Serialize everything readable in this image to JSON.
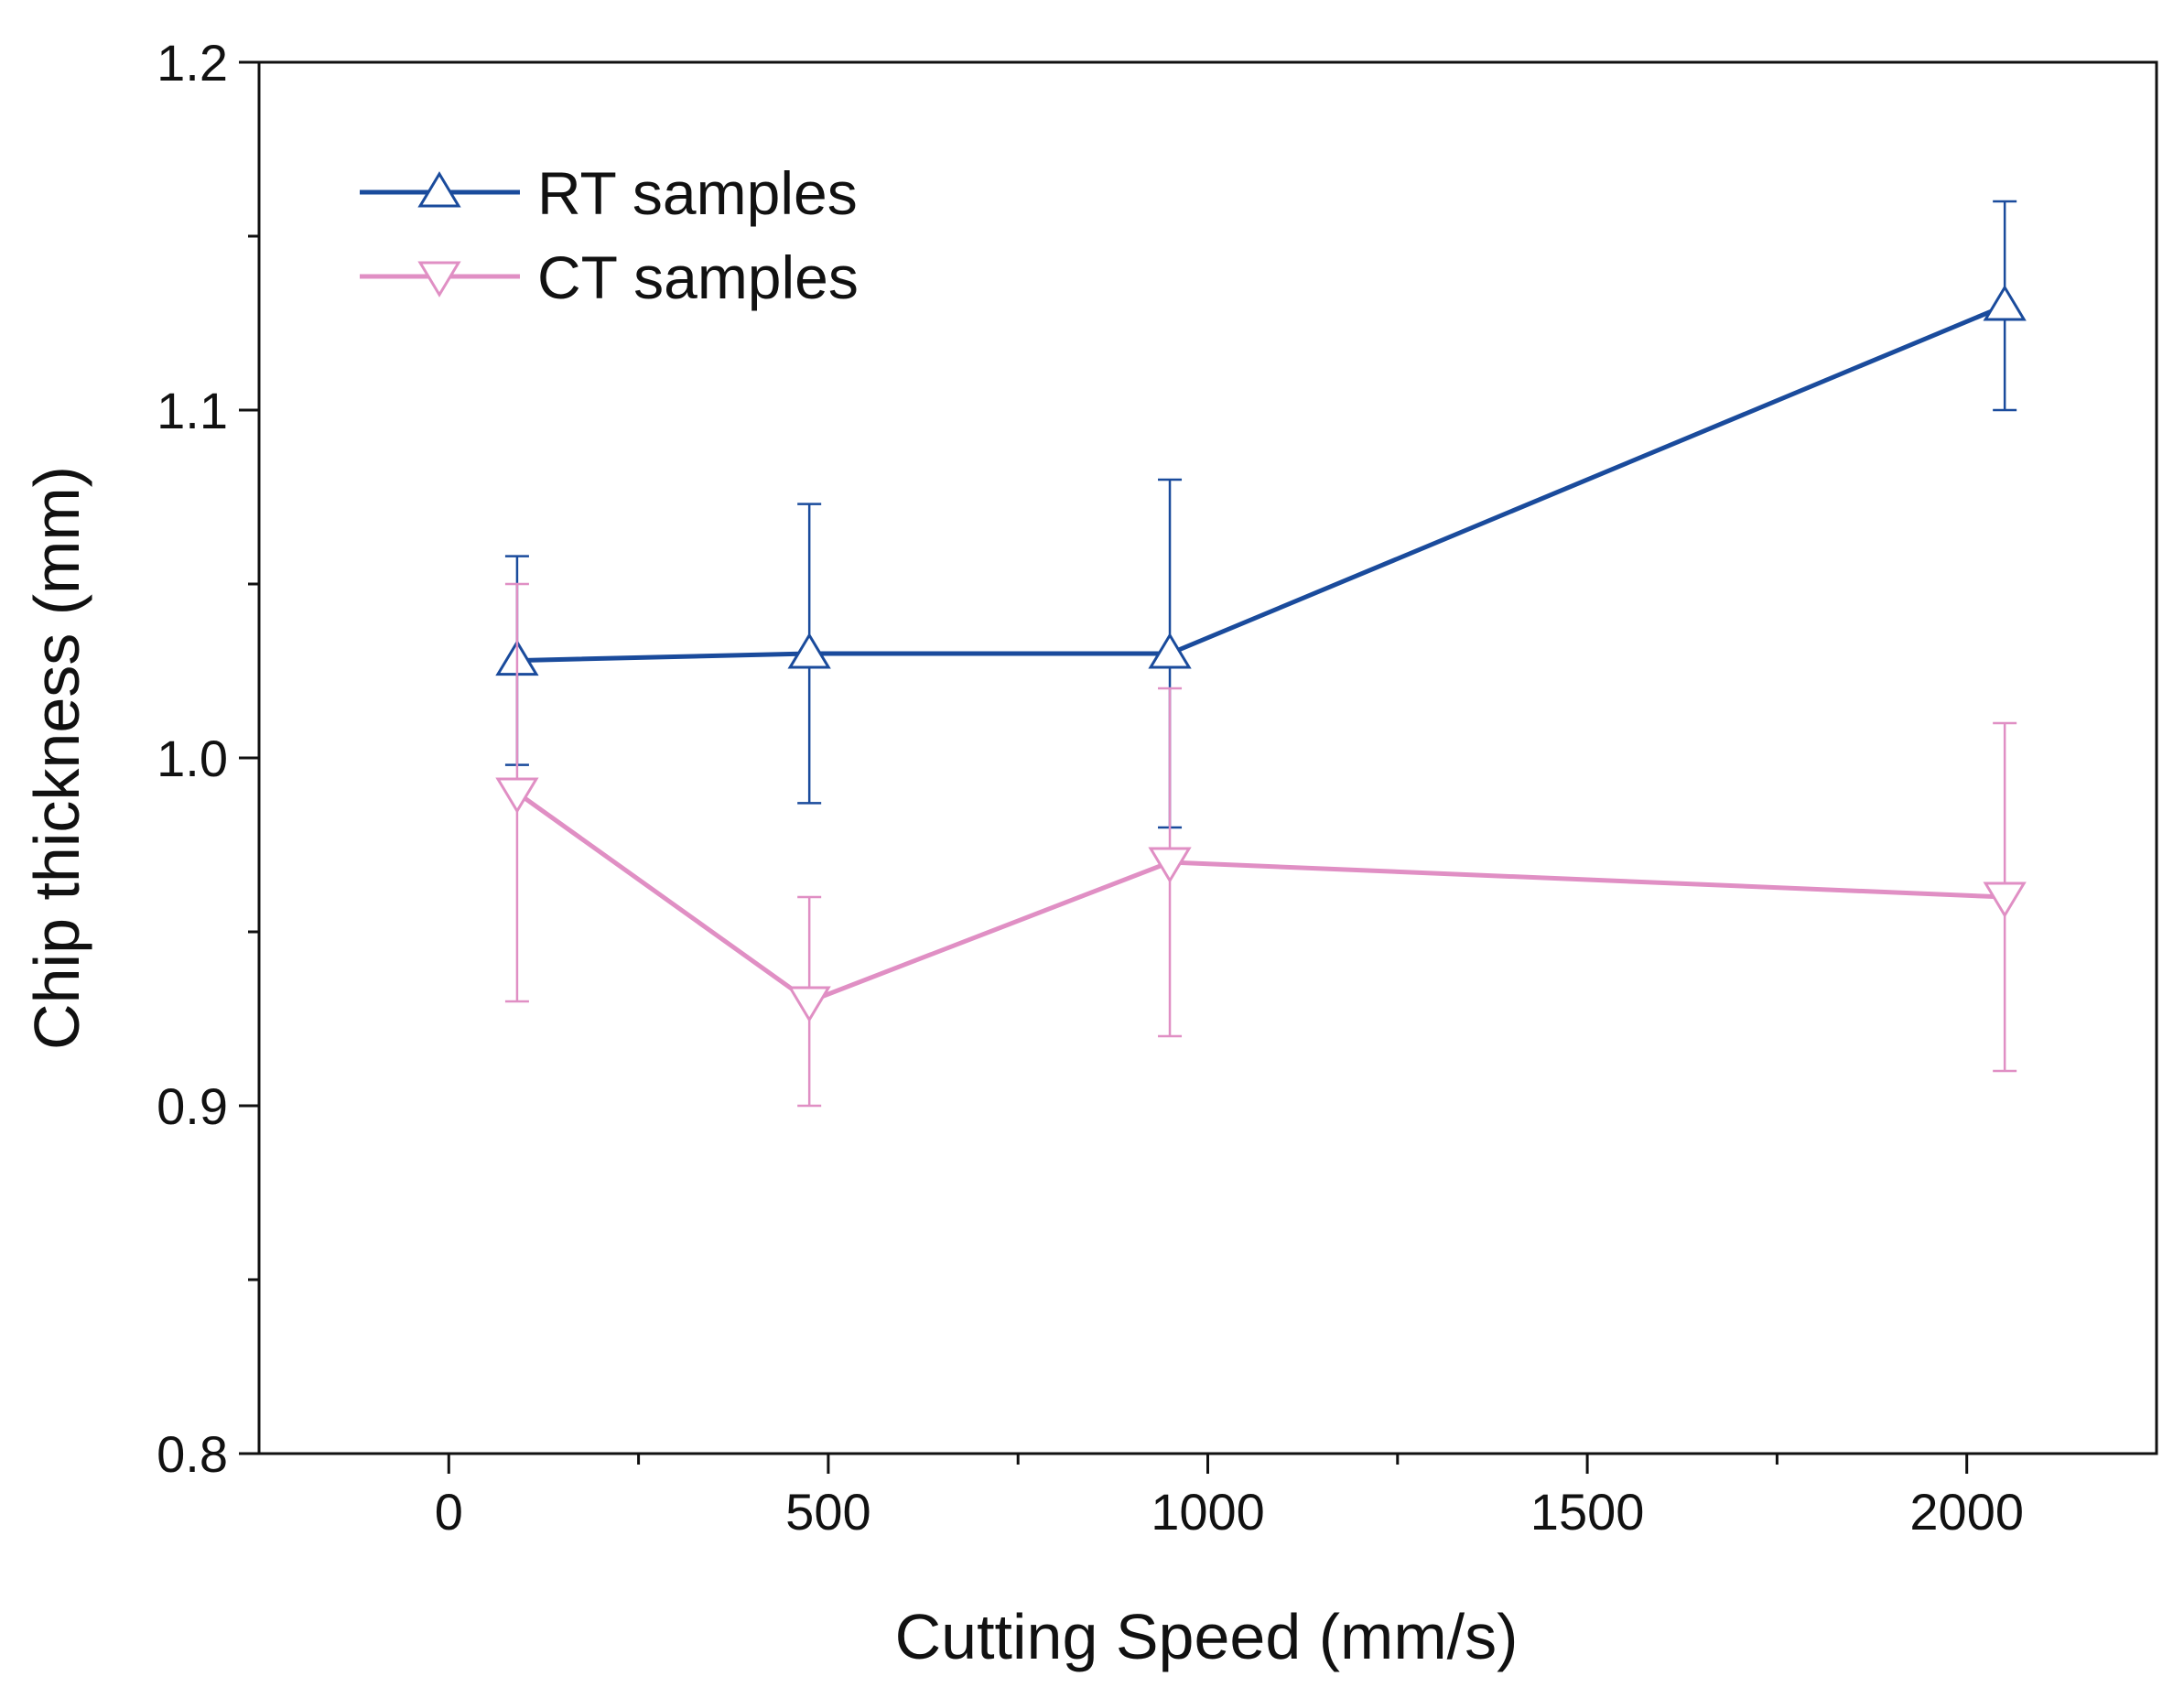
{
  "chart_data": {
    "type": "line",
    "title": "",
    "xlabel": "Cutting Speed (mm/s)",
    "ylabel": "Chip thickness (mm)",
    "xlim": [
      -250,
      2250
    ],
    "ylim": [
      0.8,
      1.2
    ],
    "x_ticks": [
      0,
      500,
      1000,
      1500,
      2000
    ],
    "x_tick_labels": [
      "0",
      "500",
      "1000",
      "1500",
      "2000"
    ],
    "y_ticks": [
      0.8,
      0.9,
      1.0,
      1.1,
      1.2
    ],
    "y_tick_labels": [
      "0.8",
      "0.9",
      "1.0",
      "1.1",
      "1.2"
    ],
    "grid": false,
    "legend_position": "top-left",
    "series": [
      {
        "name": "RT samples",
        "color": "#1a4b9c",
        "marker": "triangle-up",
        "x": [
          90,
          475,
          950,
          2050
        ],
        "y": [
          1.028,
          1.03,
          1.03,
          1.13
        ],
        "err_low": [
          0.998,
          0.987,
          0.98,
          1.1
        ],
        "err_high": [
          1.058,
          1.073,
          1.08,
          1.16
        ]
      },
      {
        "name": "CT samples",
        "color": "#e08fc4",
        "marker": "triangle-down",
        "x": [
          90,
          475,
          950,
          2050
        ],
        "y": [
          0.99,
          0.93,
          0.97,
          0.96
        ],
        "err_low": [
          0.93,
          0.9,
          0.92,
          0.91
        ],
        "err_high": [
          1.05,
          0.96,
          1.02,
          1.01
        ]
      }
    ]
  }
}
